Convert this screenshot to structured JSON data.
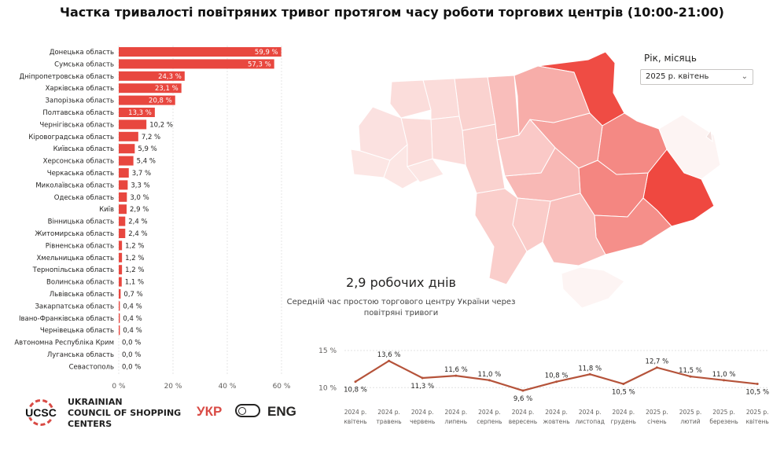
{
  "title": "Частка тривалості повітряних тривог протягом часу роботи торгових центрів (10:00-21:00)",
  "filter": {
    "label": "Рік, місяць",
    "value": "2025 р. квітень"
  },
  "kpi": {
    "value": "2,9 робочих днів",
    "caption": "Середній час простою торгового центру України через повітряні тривоги"
  },
  "branding": {
    "logo_text": "UCSC",
    "org_lines": [
      "UKRAINIAN",
      "COUNCIL OF SHOPPING",
      "CENTERS"
    ],
    "lang_ukr": "УКР",
    "lang_eng": "ENG",
    "accent_color": "#d94b45"
  },
  "chart_data": [
    {
      "type": "bar",
      "orientation": "horizontal",
      "bar_color": "#e8473f",
      "categories": [
        "Донецька область",
        "Сумська область",
        "Дніпропетровська область",
        "Харківська область",
        "Запорізька область",
        "Полтавська область",
        "Чернігівська область",
        "Кіровоградська область",
        "Київська область",
        "Херсонська область",
        "Черкаська область",
        "Миколаївська область",
        "Одеська область",
        "Київ",
        "Вінницька область",
        "Житомирська область",
        "Рівненська область",
        "Хмельницька область",
        "Тернопільська область",
        "Волинська область",
        "Львівська область",
        "Закарпатська область",
        "Івано-Франківська область",
        "Чернівецька область",
        "Автономна Республіка Крим",
        "Луганська область",
        "Севастополь"
      ],
      "values": [
        59.9,
        57.3,
        24.3,
        23.1,
        20.8,
        13.3,
        10.2,
        7.2,
        5.9,
        5.4,
        3.7,
        3.3,
        3.0,
        2.9,
        2.4,
        2.4,
        1.2,
        1.2,
        1.2,
        1.1,
        0.7,
        0.4,
        0.4,
        0.4,
        0.0,
        0.0,
        0.0
      ],
      "data_labels": [
        "59,9 %",
        "57,3 %",
        "24,3 %",
        "23,1 %",
        "20,8 %",
        "13,3 %",
        "10,2 %",
        "7,2 %",
        "5,9 %",
        "5,4 %",
        "3,7 %",
        "3,3 %",
        "3,0 %",
        "2,9 %",
        "2,4 %",
        "2,4 %",
        "1,2 %",
        "1,2 %",
        "1,2 %",
        "1,1 %",
        "0,7 %",
        "0,4 %",
        "0,4 %",
        "0,4 %",
        "0,0 %",
        "0,0 %",
        "0,0 %"
      ],
      "x_ticks": [
        0,
        20,
        40,
        60
      ],
      "x_tick_labels": [
        "0 %",
        "20 %",
        "40 %",
        "60 %"
      ],
      "xlim": [
        0,
        62
      ]
    },
    {
      "type": "line",
      "line_color": "#b5533a",
      "x": [
        "2024 р. квітень",
        "2024 р. травень",
        "2024 р. червень",
        "2024 р. липень",
        "2024 р. серпень",
        "2024 р. вересень",
        "2024 р. жовтень",
        "2024 р. листопад",
        "2024 р. грудень",
        "2025 р. січень",
        "2025 р. лютий",
        "2025 р. березень",
        "2025 р. квітень"
      ],
      "x_labels": [
        [
          "2024 р.",
          "квітень"
        ],
        [
          "2024 р.",
          "травень"
        ],
        [
          "2024 р.",
          "червень"
        ],
        [
          "2024 р.",
          "липень"
        ],
        [
          "2024 р.",
          "серпень"
        ],
        [
          "2024 р.",
          "вересень"
        ],
        [
          "2024 р.",
          "жовтень"
        ],
        [
          "2024 р.",
          "листопад"
        ],
        [
          "2024 р.",
          "грудень"
        ],
        [
          "2025 р.",
          "січень"
        ],
        [
          "2025 р.",
          "лютий"
        ],
        [
          "2025 р.",
          "березень"
        ],
        [
          "2025 р.",
          "квітень"
        ]
      ],
      "values": [
        10.8,
        13.6,
        11.3,
        11.6,
        11.0,
        9.6,
        10.8,
        11.8,
        10.5,
        12.7,
        11.5,
        11.0,
        10.5
      ],
      "data_labels": [
        "10,8 %",
        "13,6 %",
        "11,3 %",
        "11,6 %",
        "11,0 %",
        "9,6 %",
        "10,8 %",
        "11,8 %",
        "10,5 %",
        "12,7 %",
        "11,5 %",
        "11,0 %",
        "10,5 %"
      ],
      "label_below": [
        true,
        false,
        true,
        false,
        false,
        true,
        false,
        false,
        true,
        false,
        false,
        false,
        true
      ],
      "y_ticks": [
        10,
        15
      ],
      "y_tick_labels": [
        "10 %",
        "15 %"
      ],
      "ylim": [
        9.5,
        15
      ]
    }
  ],
  "map": {
    "regions": [
      {
        "name": "Донецька область",
        "value": 59.9
      },
      {
        "name": "Сумська область",
        "value": 57.3
      },
      {
        "name": "Дніпропетровська область",
        "value": 24.3
      },
      {
        "name": "Харківська область",
        "value": 23.1
      },
      {
        "name": "Запорізька область",
        "value": 20.8
      },
      {
        "name": "Полтавська область",
        "value": 13.3
      },
      {
        "name": "Чернігівська область",
        "value": 10.2
      },
      {
        "name": "Кіровоградська область",
        "value": 7.2
      },
      {
        "name": "Київська область",
        "value": 5.9
      },
      {
        "name": "Херсонська область",
        "value": 5.4
      },
      {
        "name": "Черкаська область",
        "value": 3.7
      },
      {
        "name": "Миколаївська область",
        "value": 3.3
      },
      {
        "name": "Одеська область",
        "value": 3.0
      },
      {
        "name": "Вінницька область",
        "value": 2.4
      },
      {
        "name": "Житомирська область",
        "value": 2.4
      },
      {
        "name": "Рівненська область",
        "value": 1.2
      },
      {
        "name": "Хмельницька область",
        "value": 1.2
      },
      {
        "name": "Тернопільська область",
        "value": 1.2
      },
      {
        "name": "Волинська область",
        "value": 1.1
      },
      {
        "name": "Львівська область",
        "value": 0.7
      },
      {
        "name": "Закарпатська область",
        "value": 0.4
      },
      {
        "name": "Івано-Франківська область",
        "value": 0.4
      },
      {
        "name": "Чернівецька область",
        "value": 0.4
      },
      {
        "name": "Луганська область",
        "value": 0.0
      },
      {
        "name": "Автономна Республіка Крим",
        "value": 0.0
      }
    ]
  }
}
